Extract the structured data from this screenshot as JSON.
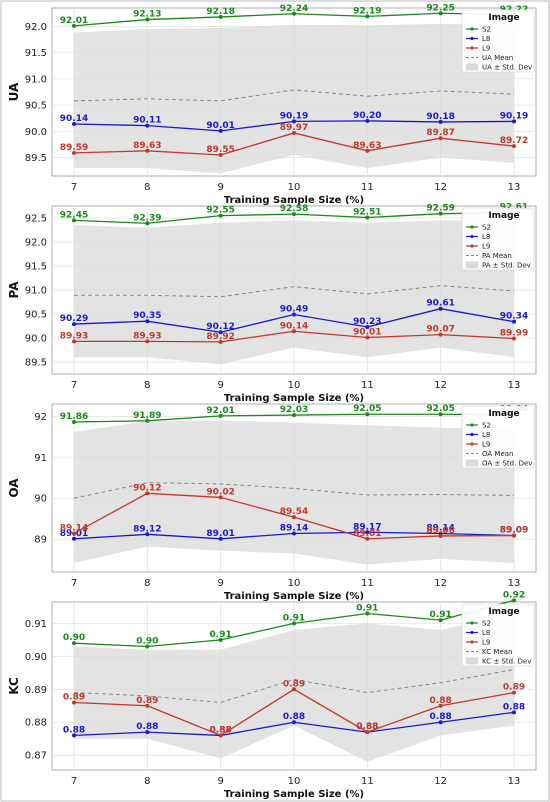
{
  "colors": {
    "S2": "#1a8a1a",
    "L8": "#1a1acc",
    "L9": "#c0392b",
    "mean": "#888888",
    "band": "#d9d9d9"
  },
  "chart_data": [
    {
      "type": "line",
      "ylabel": "UA",
      "xlabel": "Training Sample Size (%)",
      "x": [
        7,
        8,
        9,
        10,
        11,
        12,
        13
      ],
      "ylim": [
        89.15,
        92.35
      ],
      "yticks": [
        "89.5",
        "90.0",
        "90.5",
        "91.0",
        "91.5",
        "92.0"
      ],
      "yticks_values": [
        89.5,
        90.0,
        90.5,
        91.0,
        91.5,
        92.0
      ],
      "series": [
        {
          "name": "S2",
          "values": [
            92.01,
            92.13,
            92.18,
            92.24,
            92.19,
            92.25,
            92.22
          ],
          "labels": [
            "92.01",
            "92.13",
            "92.18",
            "92.24",
            "92.19",
            "92.25",
            "92.22"
          ]
        },
        {
          "name": "L8",
          "values": [
            90.14,
            90.11,
            90.01,
            90.19,
            90.2,
            90.18,
            90.19
          ],
          "labels": [
            "90.14",
            "90.11",
            "90.01",
            "90.19",
            "90.20",
            "90.18",
            "90.19"
          ]
        },
        {
          "name": "L9",
          "values": [
            89.59,
            89.63,
            89.55,
            89.97,
            89.63,
            89.87,
            89.72
          ],
          "labels": [
            "89.59",
            "89.63",
            "89.55",
            "89.97",
            "89.63",
            "89.87",
            "89.72"
          ]
        }
      ],
      "mean": [
        90.58,
        90.62,
        90.58,
        90.79,
        90.67,
        90.77,
        90.71
      ],
      "band_lower": [
        89.3,
        89.3,
        89.2,
        89.55,
        89.3,
        89.5,
        89.4
      ],
      "band_upper": [
        91.88,
        91.95,
        91.97,
        92.03,
        92.02,
        92.05,
        92.02
      ],
      "legend": {
        "title": "Image",
        "entries": [
          "S2",
          "L8",
          "L9",
          "UA Mean",
          "UA ± Std. Dev"
        ]
      }
    },
    {
      "type": "line",
      "ylabel": "PA",
      "xlabel": "Training Sample Size (%)",
      "x": [
        7,
        8,
        9,
        10,
        11,
        12,
        13
      ],
      "ylim": [
        89.25,
        92.75
      ],
      "yticks": [
        "89.5",
        "90.0",
        "90.5",
        "91.0",
        "91.5",
        "92.0",
        "92.5"
      ],
      "yticks_values": [
        89.5,
        90.0,
        90.5,
        91.0,
        91.5,
        92.0,
        92.5
      ],
      "series": [
        {
          "name": "S2",
          "values": [
            92.45,
            92.39,
            92.55,
            92.58,
            92.51,
            92.59,
            92.61
          ],
          "labels": [
            "92.45",
            "92.39",
            "92.55",
            "92.58",
            "92.51",
            "92.59",
            "92.61"
          ]
        },
        {
          "name": "L8",
          "values": [
            90.29,
            90.35,
            90.12,
            90.49,
            90.23,
            90.61,
            90.34
          ],
          "labels": [
            "90.29",
            "90.35",
            "90.12",
            "90.49",
            "90.23",
            "90.61",
            "90.34"
          ]
        },
        {
          "name": "L9",
          "values": [
            89.93,
            89.93,
            89.92,
            90.14,
            90.01,
            90.07,
            89.99
          ],
          "labels": [
            "89.93",
            "89.93",
            "89.92",
            "90.14",
            "90.01",
            "90.07",
            "89.99"
          ]
        }
      ],
      "mean": [
        90.89,
        90.89,
        90.86,
        91.07,
        90.92,
        91.09,
        90.98
      ],
      "band_lower": [
        89.6,
        89.6,
        89.45,
        89.8,
        89.6,
        89.8,
        89.6
      ],
      "band_upper": [
        92.35,
        92.3,
        92.4,
        92.45,
        92.4,
        92.45,
        92.45
      ],
      "legend": {
        "title": "Image",
        "entries": [
          "S2",
          "L8",
          "L9",
          "PA Mean",
          "PA ± Std. Dev"
        ]
      }
    },
    {
      "type": "line",
      "ylabel": "OA",
      "xlabel": "Training Sample Size (%)",
      "x": [
        7,
        8,
        9,
        10,
        11,
        12,
        13
      ],
      "ylim": [
        88.2,
        92.3
      ],
      "yticks": [
        "89",
        "90",
        "91",
        "92"
      ],
      "yticks_values": [
        89,
        90,
        91,
        92
      ],
      "series": [
        {
          "name": "S2",
          "values": [
            91.86,
            91.89,
            92.01,
            92.03,
            92.05,
            92.05,
            92.04
          ],
          "labels": [
            "91.86",
            "91.89",
            "92.01",
            "92.03",
            "92.05",
            "92.05",
            "92.04"
          ]
        },
        {
          "name": "L8",
          "values": [
            89.01,
            89.12,
            89.01,
            89.14,
            89.17,
            89.14,
            89.09
          ],
          "labels": [
            "89.01",
            "89.12",
            "89.01",
            "89.14",
            "89.17",
            "89.14",
            "89.09"
          ]
        },
        {
          "name": "L9",
          "values": [
            89.14,
            90.12,
            90.02,
            89.54,
            89.01,
            89.08,
            89.09
          ],
          "labels": [
            "89.14",
            "90.12",
            "90.02",
            "89.54",
            "89.01",
            "89.08",
            "89.09"
          ]
        }
      ],
      "mean": [
        90.0,
        90.38,
        90.35,
        90.24,
        90.08,
        90.09,
        90.07
      ],
      "band_lower": [
        88.42,
        88.82,
        88.72,
        88.65,
        88.38,
        88.52,
        88.42
      ],
      "band_upper": [
        91.62,
        91.88,
        91.9,
        91.85,
        91.78,
        91.72,
        91.7
      ],
      "legend": {
        "title": "Image",
        "entries": [
          "S2",
          "L8",
          "L9",
          "OA Mean",
          "OA ± Std. Dev"
        ]
      }
    },
    {
      "type": "line",
      "ylabel": "KC",
      "xlabel": "Training Sample Size (%)",
      "x": [
        7,
        8,
        9,
        10,
        11,
        12,
        13
      ],
      "ylim": [
        0.8655,
        0.9165
      ],
      "yticks": [
        "0.87",
        "0.88",
        "0.89",
        "0.90",
        "0.91"
      ],
      "yticks_values": [
        0.87,
        0.88,
        0.89,
        0.9,
        0.91
      ],
      "series": [
        {
          "name": "S2",
          "values": [
            0.904,
            0.903,
            0.905,
            0.91,
            0.913,
            0.911,
            0.917
          ],
          "labels": [
            "0.90",
            "0.90",
            "0.91",
            "0.91",
            "0.91",
            "0.91",
            "0.92"
          ]
        },
        {
          "name": "L8",
          "values": [
            0.876,
            0.877,
            0.876,
            0.88,
            0.877,
            0.88,
            0.883
          ],
          "labels": [
            "0.88",
            "0.88",
            "0.88",
            "0.88",
            "0.88",
            "0.88",
            "0.88"
          ]
        },
        {
          "name": "L9",
          "values": [
            0.886,
            0.885,
            0.876,
            0.89,
            0.877,
            0.885,
            0.889
          ],
          "labels": [
            "0.89",
            "0.89",
            "0.88",
            "0.89",
            "0.88",
            "0.88",
            "0.89"
          ]
        }
      ],
      "mean": [
        0.889,
        0.888,
        0.886,
        0.893,
        0.889,
        0.892,
        0.896
      ],
      "band_lower": [
        0.875,
        0.875,
        0.869,
        0.879,
        0.868,
        0.876,
        0.879
      ],
      "band_upper": [
        0.903,
        0.902,
        0.902,
        0.908,
        0.91,
        0.908,
        0.913
      ],
      "legend": {
        "title": "Image",
        "entries": [
          "S2",
          "L8",
          "L9",
          "KC Mean",
          "KC ± Std. Dev"
        ]
      }
    }
  ]
}
